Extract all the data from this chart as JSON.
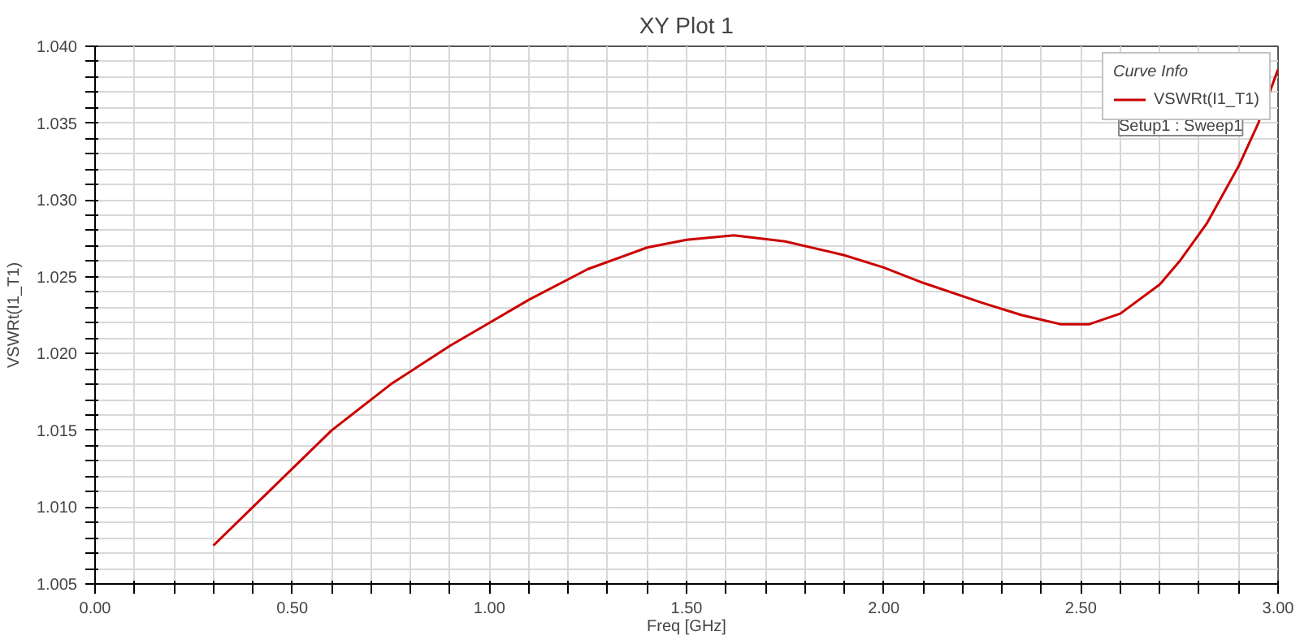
{
  "chart_data": {
    "type": "line",
    "title": "XY Plot 1",
    "xlabel": "Freq [GHz]",
    "ylabel": "VSWRt(I1_T1)",
    "legend_title": "Curve Info",
    "legend": "top right",
    "grid": true,
    "line_style": "solid",
    "marker": "none",
    "annotations": [
      "Setup1 : Sweep1"
    ],
    "x": [
      0.3,
      0.4,
      0.5,
      0.6,
      0.75,
      0.9,
      1.0,
      1.1,
      1.25,
      1.4,
      1.5,
      1.62,
      1.75,
      1.9,
      2.0,
      2.1,
      2.25,
      2.35,
      2.45,
      2.52,
      2.6,
      2.7,
      2.75,
      2.82,
      2.9,
      2.95,
      3.0
    ],
    "series": [
      {
        "name": "VSWRt(I1_T1)",
        "color": "#cc0000",
        "values": [
          1.0075,
          1.01,
          1.0125,
          1.015,
          1.018,
          1.0205,
          1.022,
          1.0235,
          1.0255,
          1.0269,
          1.0274,
          1.0277,
          1.0273,
          1.0264,
          1.0256,
          1.0246,
          1.0233,
          1.0225,
          1.0219,
          1.0219,
          1.0226,
          1.0245,
          1.026,
          1.0285,
          1.0322,
          1.035,
          1.0385
        ]
      }
    ],
    "xlim": [
      0,
      3
    ],
    "xticks": [
      {
        "value": 0,
        "label": "0.00"
      },
      {
        "value": 0.1,
        "label": null
      },
      {
        "value": 0.2,
        "label": null
      },
      {
        "value": 0.3,
        "label": null
      },
      {
        "value": 0.4,
        "label": null
      },
      {
        "value": 0.5,
        "label": "0.50"
      },
      {
        "value": 0.6,
        "label": null
      },
      {
        "value": 0.7,
        "label": null
      },
      {
        "value": 0.8,
        "label": null
      },
      {
        "value": 0.9,
        "label": null
      },
      {
        "value": 1.0,
        "label": "1.00"
      },
      {
        "value": 1.1,
        "label": null
      },
      {
        "value": 1.2,
        "label": null
      },
      {
        "value": 1.3,
        "label": null
      },
      {
        "value": 1.4,
        "label": null
      },
      {
        "value": 1.5,
        "label": "1.50"
      },
      {
        "value": 1.6,
        "label": null
      },
      {
        "value": 1.7,
        "label": null
      },
      {
        "value": 1.8,
        "label": null
      },
      {
        "value": 1.9,
        "label": null
      },
      {
        "value": 2.0,
        "label": "2.00"
      },
      {
        "value": 2.1,
        "label": null
      },
      {
        "value": 2.2,
        "label": null
      },
      {
        "value": 2.3,
        "label": null
      },
      {
        "value": 2.4,
        "label": null
      },
      {
        "value": 2.5,
        "label": "2.50"
      },
      {
        "value": 2.6,
        "label": null
      },
      {
        "value": 2.7,
        "label": null
      },
      {
        "value": 2.8,
        "label": null
      },
      {
        "value": 2.9,
        "label": null
      },
      {
        "value": 3.0,
        "label": "3.00"
      }
    ],
    "ylim": [
      1.005,
      1.04
    ],
    "yticks": [
      {
        "value": 1.005,
        "label": "1.005"
      },
      {
        "value": 1.006,
        "label": null
      },
      {
        "value": 1.007,
        "label": null
      },
      {
        "value": 1.008,
        "label": null
      },
      {
        "value": 1.009,
        "label": null
      },
      {
        "value": 1.01,
        "label": "1.010"
      },
      {
        "value": 1.011,
        "label": null
      },
      {
        "value": 1.012,
        "label": null
      },
      {
        "value": 1.013,
        "label": null
      },
      {
        "value": 1.014,
        "label": null
      },
      {
        "value": 1.015,
        "label": "1.015"
      },
      {
        "value": 1.016,
        "label": null
      },
      {
        "value": 1.017,
        "label": null
      },
      {
        "value": 1.018,
        "label": null
      },
      {
        "value": 1.019,
        "label": null
      },
      {
        "value": 1.02,
        "label": "1.020"
      },
      {
        "value": 1.021,
        "label": null
      },
      {
        "value": 1.022,
        "label": null
      },
      {
        "value": 1.023,
        "label": null
      },
      {
        "value": 1.024,
        "label": null
      },
      {
        "value": 1.025,
        "label": "1.025"
      },
      {
        "value": 1.026,
        "label": null
      },
      {
        "value": 1.027,
        "label": null
      },
      {
        "value": 1.028,
        "label": null
      },
      {
        "value": 1.029,
        "label": null
      },
      {
        "value": 1.03,
        "label": "1.030"
      },
      {
        "value": 1.031,
        "label": null
      },
      {
        "value": 1.032,
        "label": null
      },
      {
        "value": 1.033,
        "label": null
      },
      {
        "value": 1.034,
        "label": null
      },
      {
        "value": 1.035,
        "label": "1.035"
      },
      {
        "value": 1.036,
        "label": null
      },
      {
        "value": 1.037,
        "label": null
      },
      {
        "value": 1.038,
        "label": null
      },
      {
        "value": 1.039,
        "label": null
      },
      {
        "value": 1.04,
        "label": "1.040"
      }
    ]
  }
}
